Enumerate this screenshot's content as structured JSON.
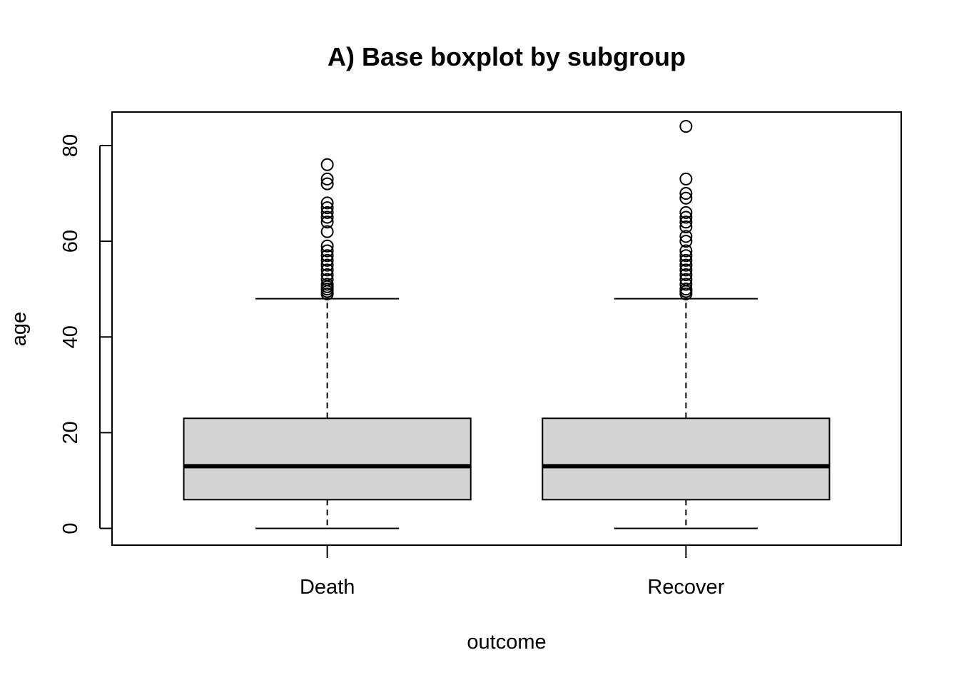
{
  "chart_data": {
    "type": "boxplot",
    "title": "A) Base boxplot by subgroup",
    "xlabel": "outcome",
    "ylabel": "age",
    "ylim": [
      -3.5,
      87
    ],
    "yticks": [
      0,
      20,
      40,
      60,
      80
    ],
    "categories": [
      "Death",
      "Recover"
    ],
    "box_fill": "#d3d3d3",
    "grid": false,
    "legend": "none",
    "boxes": [
      {
        "category": "Death",
        "whisker_low": 0,
        "q1": 6,
        "median": 13,
        "q3": 23,
        "whisker_high": 48,
        "outliers": [
          49,
          49.5,
          50,
          50.5,
          51,
          52,
          53,
          54,
          55,
          56,
          57,
          58,
          59,
          62,
          64,
          65,
          66,
          67,
          68,
          72,
          73,
          76
        ]
      },
      {
        "category": "Recover",
        "whisker_low": 0,
        "q1": 6,
        "median": 13,
        "q3": 23,
        "whisker_high": 48,
        "outliers": [
          49,
          49.5,
          50,
          51,
          52,
          53,
          54,
          55,
          56,
          57,
          58,
          60,
          61,
          63,
          64,
          65,
          66,
          69,
          70,
          73,
          84
        ]
      }
    ]
  }
}
